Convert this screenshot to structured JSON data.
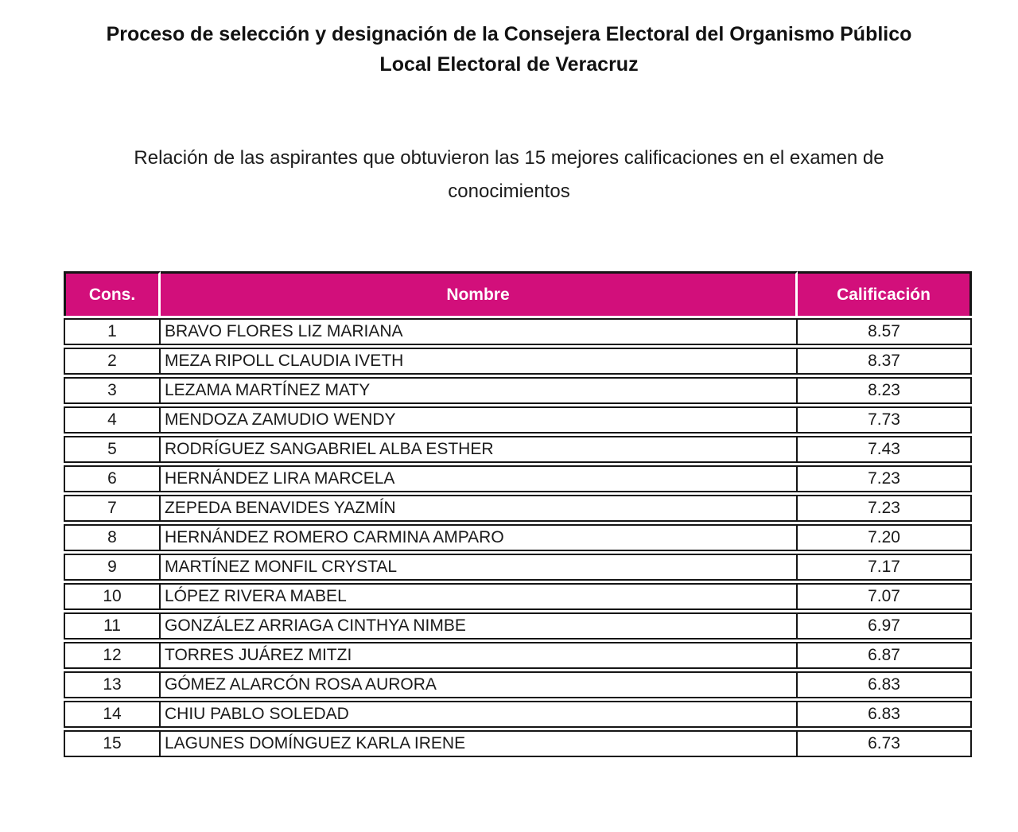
{
  "page": {
    "title_lines": [
      "Proceso de selección y designación de la Consejera Electoral del Organismo Público",
      "Local Electoral de Veracruz"
    ],
    "subtitle_lines": [
      "Relación de las aspirantes que obtuvieron las 15 mejores calificaciones en el examen de",
      "conocimientos"
    ]
  },
  "table": {
    "columns": [
      "Cons.",
      "Nombre",
      "Calificación"
    ],
    "rows": [
      {
        "cons": "1",
        "nombre": "BRAVO FLORES LIZ MARIANA",
        "calificacion": "8.57"
      },
      {
        "cons": "2",
        "nombre": "MEZA RIPOLL CLAUDIA IVETH",
        "calificacion": "8.37"
      },
      {
        "cons": "3",
        "nombre": "LEZAMA MARTÍNEZ MATY",
        "calificacion": "8.23"
      },
      {
        "cons": "4",
        "nombre": "MENDOZA ZAMUDIO WENDY",
        "calificacion": "7.73"
      },
      {
        "cons": "5",
        "nombre": "RODRÍGUEZ SANGABRIEL ALBA ESTHER",
        "calificacion": "7.43"
      },
      {
        "cons": "6",
        "nombre": "HERNÁNDEZ LIRA MARCELA",
        "calificacion": "7.23"
      },
      {
        "cons": "7",
        "nombre": "ZEPEDA BENAVIDES YAZMÍN",
        "calificacion": "7.23"
      },
      {
        "cons": "8",
        "nombre": "HERNÁNDEZ ROMERO CARMINA AMPARO",
        "calificacion": "7.20"
      },
      {
        "cons": "9",
        "nombre": "MARTÍNEZ MONFIL CRYSTAL",
        "calificacion": "7.17"
      },
      {
        "cons": "10",
        "nombre": "LÓPEZ RIVERA MABEL",
        "calificacion": "7.07"
      },
      {
        "cons": "11",
        "nombre": "GONZÁLEZ ARRIAGA CINTHYA NIMBE",
        "calificacion": "6.97"
      },
      {
        "cons": "12",
        "nombre": "TORRES JUÁREZ MITZI",
        "calificacion": "6.87"
      },
      {
        "cons": "13",
        "nombre": "GÓMEZ ALARCÓN ROSA AURORA",
        "calificacion": "6.83"
      },
      {
        "cons": "14",
        "nombre": "CHIU PABLO SOLEDAD",
        "calificacion": "6.83"
      },
      {
        "cons": "15",
        "nombre": "LAGUNES DOMÍNGUEZ KARLA IRENE",
        "calificacion": "6.73"
      }
    ]
  },
  "colors": {
    "header_bg": "#d20f7b",
    "header_text": "#ffffff",
    "border": "#151515",
    "text": "#1a1a1a"
  }
}
